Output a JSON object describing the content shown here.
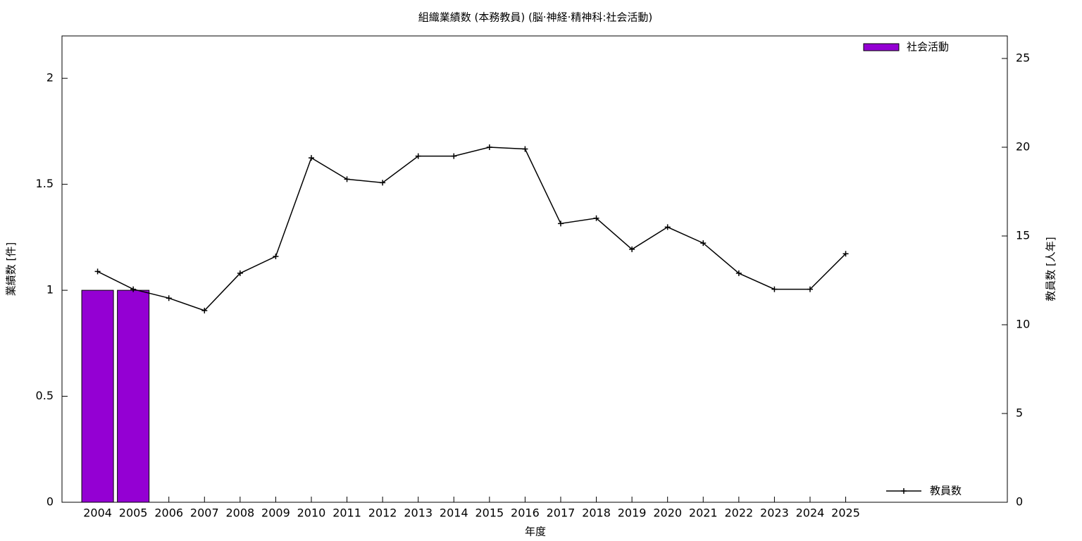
{
  "chart_data": {
    "type": "bar_line",
    "title": "組織業績数 (本務教員) (脳·神経·精神科:社会活動)",
    "x_label": "年度",
    "y_label": "業績数 [件]",
    "y2_label": "教員数 [人年]",
    "categories": [
      "2004",
      "2005",
      "2006",
      "2007",
      "2008",
      "2009",
      "2010",
      "2011",
      "2012",
      "2013",
      "2014",
      "2015",
      "2016",
      "2017",
      "2018",
      "2019",
      "2020",
      "2021",
      "2022",
      "2023",
      "2024",
      "2025"
    ],
    "series": [
      {
        "name": "社会活動",
        "type": "bar",
        "color": "#9400d3",
        "values": [
          1,
          1,
          0,
          0,
          0,
          0,
          0,
          0,
          0,
          0,
          0,
          0,
          0,
          0,
          0,
          0,
          0,
          0,
          0,
          0,
          0,
          0
        ]
      },
      {
        "name": "教員数",
        "type": "line",
        "axis": "y2",
        "color": "#000000",
        "values": [
          13.0,
          12.0,
          11.5,
          10.8,
          12.9,
          13.85,
          19.4,
          18.2,
          18.0,
          19.5,
          19.5,
          20.0,
          19.9,
          15.7,
          16.0,
          14.25,
          15.5,
          14.6,
          12.9,
          12.0,
          12.0,
          14.0
        ]
      }
    ],
    "ylim": [
      0,
      2.2
    ],
    "yticks": [
      0,
      0.5,
      1,
      1.5,
      2
    ],
    "y2lim": [
      0,
      26.27
    ],
    "y2ticks": [
      0,
      5,
      10,
      15,
      20,
      25
    ],
    "grid": false
  }
}
